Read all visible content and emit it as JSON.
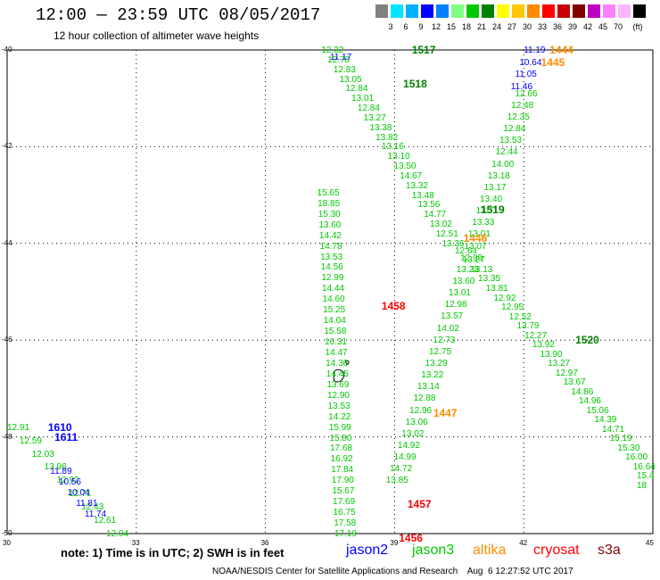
{
  "title": "12:00 — 23:59 UTC 08/05/2017",
  "subtitle": "12 hour collection of altimeter wave heights",
  "legend": {
    "unit": "(ft)",
    "colors": [
      "#808080",
      "#00e5ff",
      "#00b0ff",
      "#0000ff",
      "#0080ff",
      "#80ff80",
      "#00c800",
      "#008000",
      "#ffff00",
      "#ffc800",
      "#ff8c00",
      "#ff0000",
      "#c80000",
      "#800000",
      "#c000c0",
      "#ff80ff",
      "#ffb4ff",
      "#000000"
    ],
    "labels": [
      "3",
      "6",
      "9",
      "12",
      "15",
      "18",
      "21",
      "24",
      "27",
      "30",
      "33",
      "36",
      "39",
      "42",
      "45",
      "70"
    ]
  },
  "axes": {
    "lat_labels": [
      "-40",
      "-42",
      "-44",
      "-46",
      "-48",
      "-50"
    ],
    "lon_labels": [
      "30",
      "33",
      "36",
      "39",
      "42",
      "45"
    ]
  },
  "time_labels": [
    {
      "text": "1517",
      "color": "#008000",
      "lon": 39.4,
      "lat": -40.0
    },
    {
      "text": "1518",
      "color": "#008000",
      "lon": 39.2,
      "lat": -40.7
    },
    {
      "text": "1444",
      "color": "#ff8c00",
      "lon": 42.6,
      "lat": -40.0
    },
    {
      "text": "1445",
      "color": "#ff8c00",
      "lon": 42.4,
      "lat": -40.25
    },
    {
      "text": "1519",
      "color": "#008000",
      "lon": 41.0,
      "lat": -43.3
    },
    {
      "text": "1446",
      "color": "#ff8c00",
      "lon": 40.6,
      "lat": -43.9
    },
    {
      "text": "1458",
      "color": "#ff0000",
      "lon": 38.7,
      "lat": -45.3
    },
    {
      "text": "1520",
      "color": "#008000",
      "lon": 43.2,
      "lat": -46.0
    },
    {
      "text": "1447",
      "color": "#ff8c00",
      "lon": 39.9,
      "lat": -47.5
    },
    {
      "text": "1457",
      "color": "#ff0000",
      "lon": 39.3,
      "lat": -49.4
    },
    {
      "text": "1456",
      "color": "#ff0000",
      "lon": 39.1,
      "lat": -50.1
    },
    {
      "text": "1610",
      "color": "#0000ff",
      "lon": 30.95,
      "lat": -47.8
    },
    {
      "text": "1611",
      "color": "#0000ff",
      "lon": 31.1,
      "lat": -48.0
    }
  ],
  "tracks": {
    "jason3_1517": {
      "color": "#00c800",
      "values": [
        "12.32",
        "12.78",
        "12.83",
        "13.05",
        "12.84",
        "13.01",
        "12.84",
        "13.27",
        "13.38",
        "13.82",
        "13.16",
        "13.10",
        "13.50",
        "14.67",
        "13.32",
        "13.48",
        "13.56",
        "14.77",
        "13.02",
        "12.51",
        "13.36"
      ]
    },
    "jason2_1517": {
      "color": "#0000ff",
      "values": [
        "11.17"
      ]
    },
    "jason3_1519": {
      "color": "#00c800",
      "values": [
        "12.66",
        "12.48",
        "12.35",
        "12.84",
        "13.53",
        "12.44",
        "14.00",
        "13.18",
        "13.17",
        "13.40",
        "13.71",
        "13.33",
        "13.01",
        "13.07",
        "12.99",
        "13.23",
        "13.60",
        "13.01",
        "12.98",
        "13.57",
        "14.02",
        "12.73",
        "12.75",
        "13.29",
        "13.22",
        "13.14",
        "12.88",
        "12.96",
        "13.06",
        "13.02",
        "14.92",
        "14.99",
        "14.72",
        "13.85"
      ]
    },
    "jason2_1519": {
      "color": "#0000ff",
      "values": [
        "11.19",
        "10.64",
        "11.05",
        "11.46"
      ]
    },
    "jason3_1520": {
      "color": "#00c800",
      "values": [
        "12.64",
        "13.27",
        "13.13",
        "13.35",
        "13.81",
        "12.92",
        "12.95",
        "12.52",
        "13.79",
        "12.27",
        "13.92",
        "13.90",
        "13.27",
        "12.97",
        "13.67",
        "14.86",
        "14.96",
        "15.06",
        "14.39",
        "14.71",
        "15.19",
        "15.30",
        "16.00",
        "16.64",
        "15.4",
        "18"
      ]
    },
    "jason3_1458": {
      "color": "#00c800",
      "values": [
        "15.65",
        "18.85",
        "15.30",
        "13.60",
        "14.42",
        "14.78",
        "13.53",
        "14.56",
        "12.99",
        "14.44",
        "14.60",
        "15.25",
        "14.04",
        "15.58",
        "16.31",
        "14.47",
        "14.36",
        "14.45",
        "13.69",
        "12.90",
        "13.53",
        "14.22",
        "15.99",
        "15.80",
        "17.68",
        "16.92",
        "17.84",
        "17.90",
        "15.67",
        "17.69",
        "16.75",
        "17.58",
        "17.19"
      ]
    },
    "jason3_1610": {
      "color": "#00c800",
      "values": [
        "12.91",
        "12.59",
        "12.03",
        "13.96",
        "12.92",
        "12.71",
        "12.43",
        "12.61",
        "12.04"
      ]
    },
    "jason2_1610": {
      "color": "#0000ff",
      "values": [
        "11.89",
        "10.56",
        "10.04",
        "11.81",
        "11.74"
      ]
    }
  },
  "note": "note: 1) Time is in UTC; 2) SWH is in feet",
  "satellites": [
    {
      "name": "jason2",
      "color": "#0000ff"
    },
    {
      "name": "jason3",
      "color": "#00c800"
    },
    {
      "name": "altika",
      "color": "#ff8c00"
    },
    {
      "name": "cryosat",
      "color": "#ff0000"
    },
    {
      "name": "s3a",
      "color": "#800000"
    }
  ],
  "footer": "NOAA/NESDIS Center for Satellite Applications and Research    Aug  6 12:27:52 UTC 2017"
}
